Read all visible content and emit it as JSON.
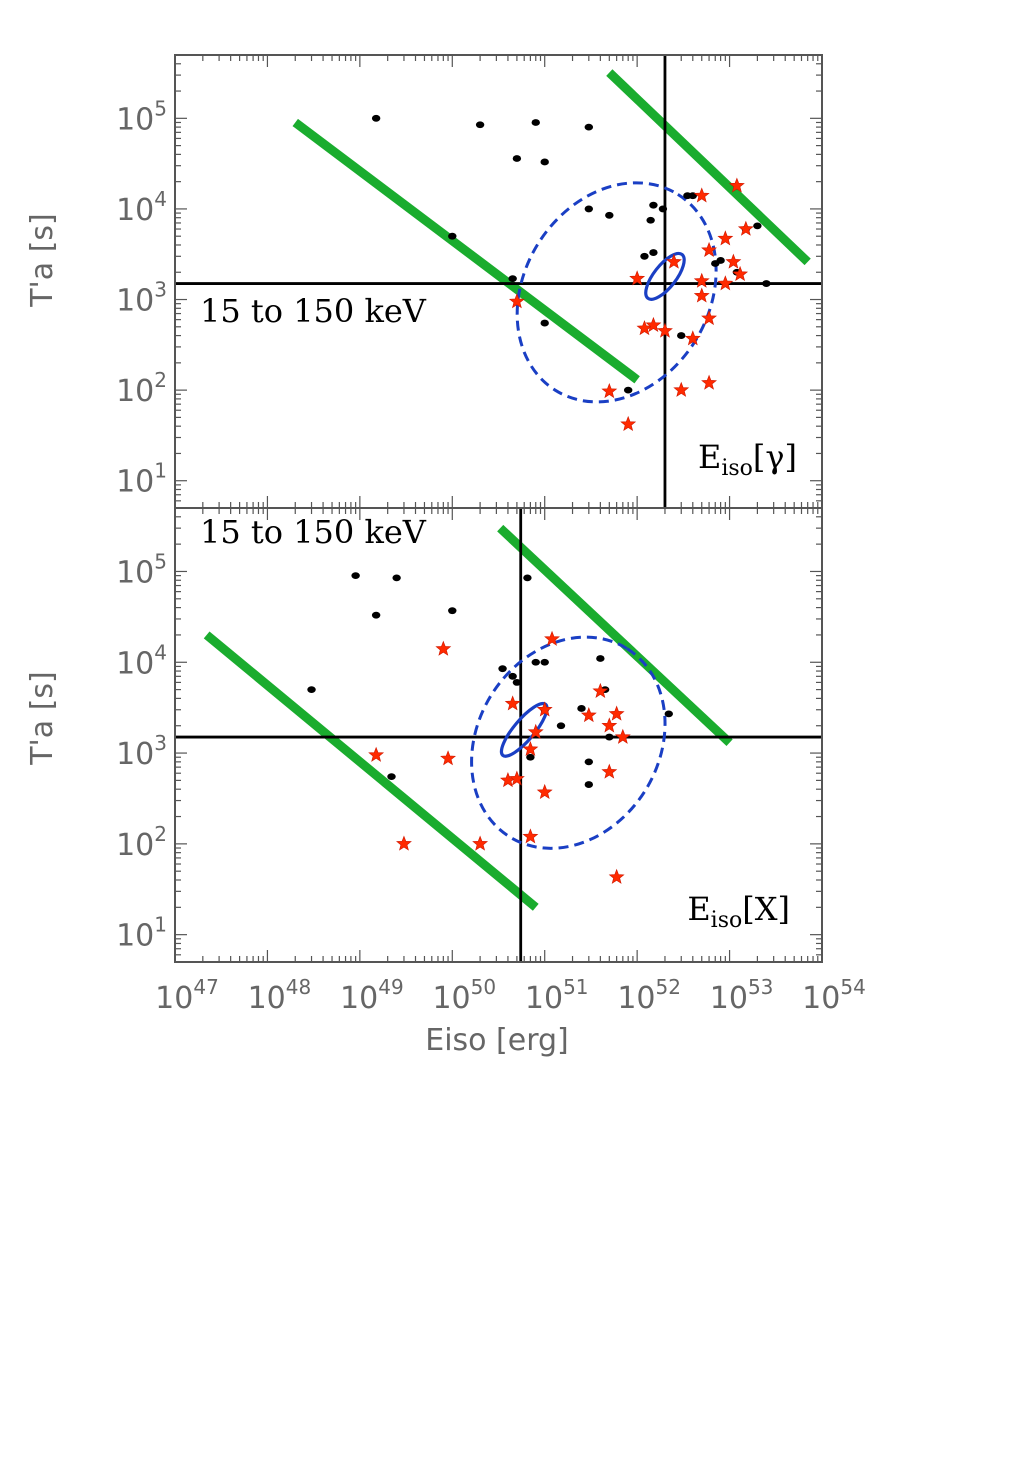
{
  "colors": {
    "background": "#ffffff",
    "frame": "#555555",
    "refline": "#000000",
    "band": "#1aac2e",
    "ellipse": "#1a3fc4",
    "black_point": "#000000",
    "red_star": "#ff2a00",
    "axis_text": "#666666",
    "annotation": "#000000"
  },
  "shared": {
    "xlabel": "Eiso [erg]",
    "x_ticks": [
      {
        "exp": "47",
        "base": "10"
      },
      {
        "exp": "48",
        "base": "10"
      },
      {
        "exp": "49",
        "base": "10"
      },
      {
        "exp": "50",
        "base": "10"
      },
      {
        "exp": "51",
        "base": "10"
      },
      {
        "exp": "52",
        "base": "10"
      },
      {
        "exp": "53",
        "base": "10"
      },
      {
        "exp": "54",
        "base": "10"
      }
    ],
    "y_ticks": [
      {
        "exp": "1",
        "base": "10"
      },
      {
        "exp": "2",
        "base": "10"
      },
      {
        "exp": "3",
        "base": "10"
      },
      {
        "exp": "4",
        "base": "10"
      },
      {
        "exp": "5",
        "base": "10"
      }
    ]
  },
  "chart_data": [
    {
      "type": "scatter",
      "xscale": "log",
      "yscale": "log",
      "xlim": [
        1e+47,
        1e+54
      ],
      "ylim": [
        5,
        500000
      ],
      "ylabel": "T'a [s]",
      "annotation": "15 to 150 keV",
      "panel_label": {
        "main": "E",
        "sub": "iso",
        "arg": "[γ]"
      },
      "reference_lines": {
        "x": 2e+52,
        "y": 1500
      },
      "bands": [
        {
          "x": [
            2e+48,
            1e+52
          ],
          "y": [
            90000,
            130
          ]
        },
        {
          "x": [
            5e+51,
            7e+53
          ],
          "y": [
            320000,
            2600
          ]
        }
      ],
      "ellipses": [
        {
          "style": "dashed",
          "center": [
            6e+51,
            1200
          ],
          "log_radii": [
            1.25,
            1.0
          ],
          "angle_deg": -58
        },
        {
          "style": "solid",
          "center": [
            2e+52,
            1800
          ],
          "log_radii": [
            0.3,
            0.12
          ],
          "angle_deg": -52
        }
      ],
      "series": [
        {
          "marker": "dot",
          "points": [
            [
              1.5e+49,
              100000
            ],
            [
              2e+50,
              85000
            ],
            [
              8e+50,
              90000
            ],
            [
              3e+51,
              80000
            ],
            [
              5e+50,
              36000
            ],
            [
              1e+51,
              33000
            ],
            [
              1e+50,
              5000
            ],
            [
              3e+51,
              10000
            ],
            [
              5e+51,
              8500
            ],
            [
              1.5e+52,
              11000
            ],
            [
              1.9e+52,
              10000
            ],
            [
              1.4e+52,
              7500
            ],
            [
              1.2e+52,
              3000
            ],
            [
              1.5e+52,
              3300
            ],
            [
              4e+52,
              14000
            ],
            [
              3.5e+52,
              14000
            ],
            [
              1.5e+53,
              6000
            ],
            [
              2e+53,
              6500
            ],
            [
              8e+52,
              2700
            ],
            [
              7e+52,
              2500
            ],
            [
              1.2e+53,
              2000
            ],
            [
              2.5e+53,
              1500
            ],
            [
              4.5e+50,
              1700
            ],
            [
              1e+51,
              550
            ],
            [
              8e+51,
              100
            ],
            [
              3e+52,
              400
            ]
          ]
        },
        {
          "marker": "star",
          "points": [
            [
              1.2e+53,
              18000
            ],
            [
              5e+52,
              14000
            ],
            [
              1.5e+53,
              6000
            ],
            [
              9e+52,
              4700
            ],
            [
              6e+52,
              3500
            ],
            [
              2.5e+52,
              2600
            ],
            [
              5e+52,
              1600
            ],
            [
              1.1e+53,
              2600
            ],
            [
              1.3e+53,
              1900
            ],
            [
              9e+52,
              1500
            ],
            [
              5e+52,
              1100
            ],
            [
              1e+52,
              1700
            ],
            [
              5e+50,
              950
            ],
            [
              1.2e+52,
              480
            ],
            [
              1.5e+52,
              520
            ],
            [
              2e+52,
              450
            ],
            [
              4e+52,
              370
            ],
            [
              6e+52,
              620
            ],
            [
              3e+52,
              100
            ],
            [
              6e+52,
              120
            ],
            [
              5e+51,
              97
            ],
            [
              8e+51,
              42
            ]
          ]
        }
      ]
    },
    {
      "type": "scatter",
      "xscale": "log",
      "yscale": "log",
      "xlim": [
        1e+47,
        1e+54
      ],
      "ylim": [
        5,
        500000
      ],
      "ylabel": "T'a [s]",
      "annotation": "15 to 150 keV",
      "panel_label": {
        "main": "E",
        "sub": "iso",
        "arg": "[X]"
      },
      "reference_lines": {
        "x": 5.5e+50,
        "y": 1500
      },
      "bands": [
        {
          "x": [
            2.2e+47,
            8e+50
          ],
          "y": [
            20000,
            20
          ]
        },
        {
          "x": [
            3.3e+50,
            1e+53
          ],
          "y": [
            300000,
            1300
          ]
        }
      ],
      "ellipses": [
        {
          "style": "dashed",
          "center": [
            1.8e+51,
            1300
          ],
          "log_radii": [
            1.2,
            0.98
          ],
          "angle_deg": -58
        },
        {
          "style": "solid",
          "center": [
            6e+50,
            1800
          ],
          "log_radii": [
            0.36,
            0.11
          ],
          "angle_deg": -50
        }
      ],
      "series": [
        {
          "marker": "dot",
          "points": [
            [
              9e+48,
              90000
            ],
            [
              2.5e+49,
              85000
            ],
            [
              1.5e+49,
              33000
            ],
            [
              1e+50,
              37000
            ],
            [
              6.5e+50,
              85000
            ],
            [
              3e+48,
              5000
            ],
            [
              2.2e+49,
              550
            ],
            [
              3.5e+50,
              8500
            ],
            [
              4.5e+50,
              7000
            ],
            [
              5e+50,
              6000
            ],
            [
              8e+50,
              10000
            ],
            [
              1e+51,
              10000
            ],
            [
              2.5e+51,
              3100
            ],
            [
              3e+51,
              800
            ],
            [
              4e+51,
              11000
            ],
            [
              4.5e+51,
              5000
            ],
            [
              5e+51,
              1500
            ],
            [
              2.2e+52,
              2700
            ],
            [
              1e+51,
              3000
            ],
            [
              1.5e+51,
              2000
            ],
            [
              3e+51,
              450
            ],
            [
              7e+50,
              900
            ]
          ]
        },
        {
          "marker": "star",
          "points": [
            [
              1.2e+51,
              18000
            ],
            [
              8e+49,
              14000
            ],
            [
              4e+51,
              4800
            ],
            [
              6e+51,
              2700
            ],
            [
              5e+51,
              2000
            ],
            [
              7e+51,
              1500
            ],
            [
              3e+51,
              2600
            ],
            [
              1e+51,
              3000
            ],
            [
              4.5e+50,
              3500
            ],
            [
              8e+50,
              1700
            ],
            [
              1.5e+49,
              950
            ],
            [
              9e+49,
              870
            ],
            [
              4e+50,
              500
            ],
            [
              5e+50,
              520
            ],
            [
              7e+50,
              1100
            ],
            [
              1e+51,
              370
            ],
            [
              5e+51,
              620
            ],
            [
              3e+49,
              100
            ],
            [
              2e+50,
              100
            ],
            [
              7e+50,
              120
            ],
            [
              6e+51,
              43
            ]
          ]
        }
      ]
    }
  ]
}
